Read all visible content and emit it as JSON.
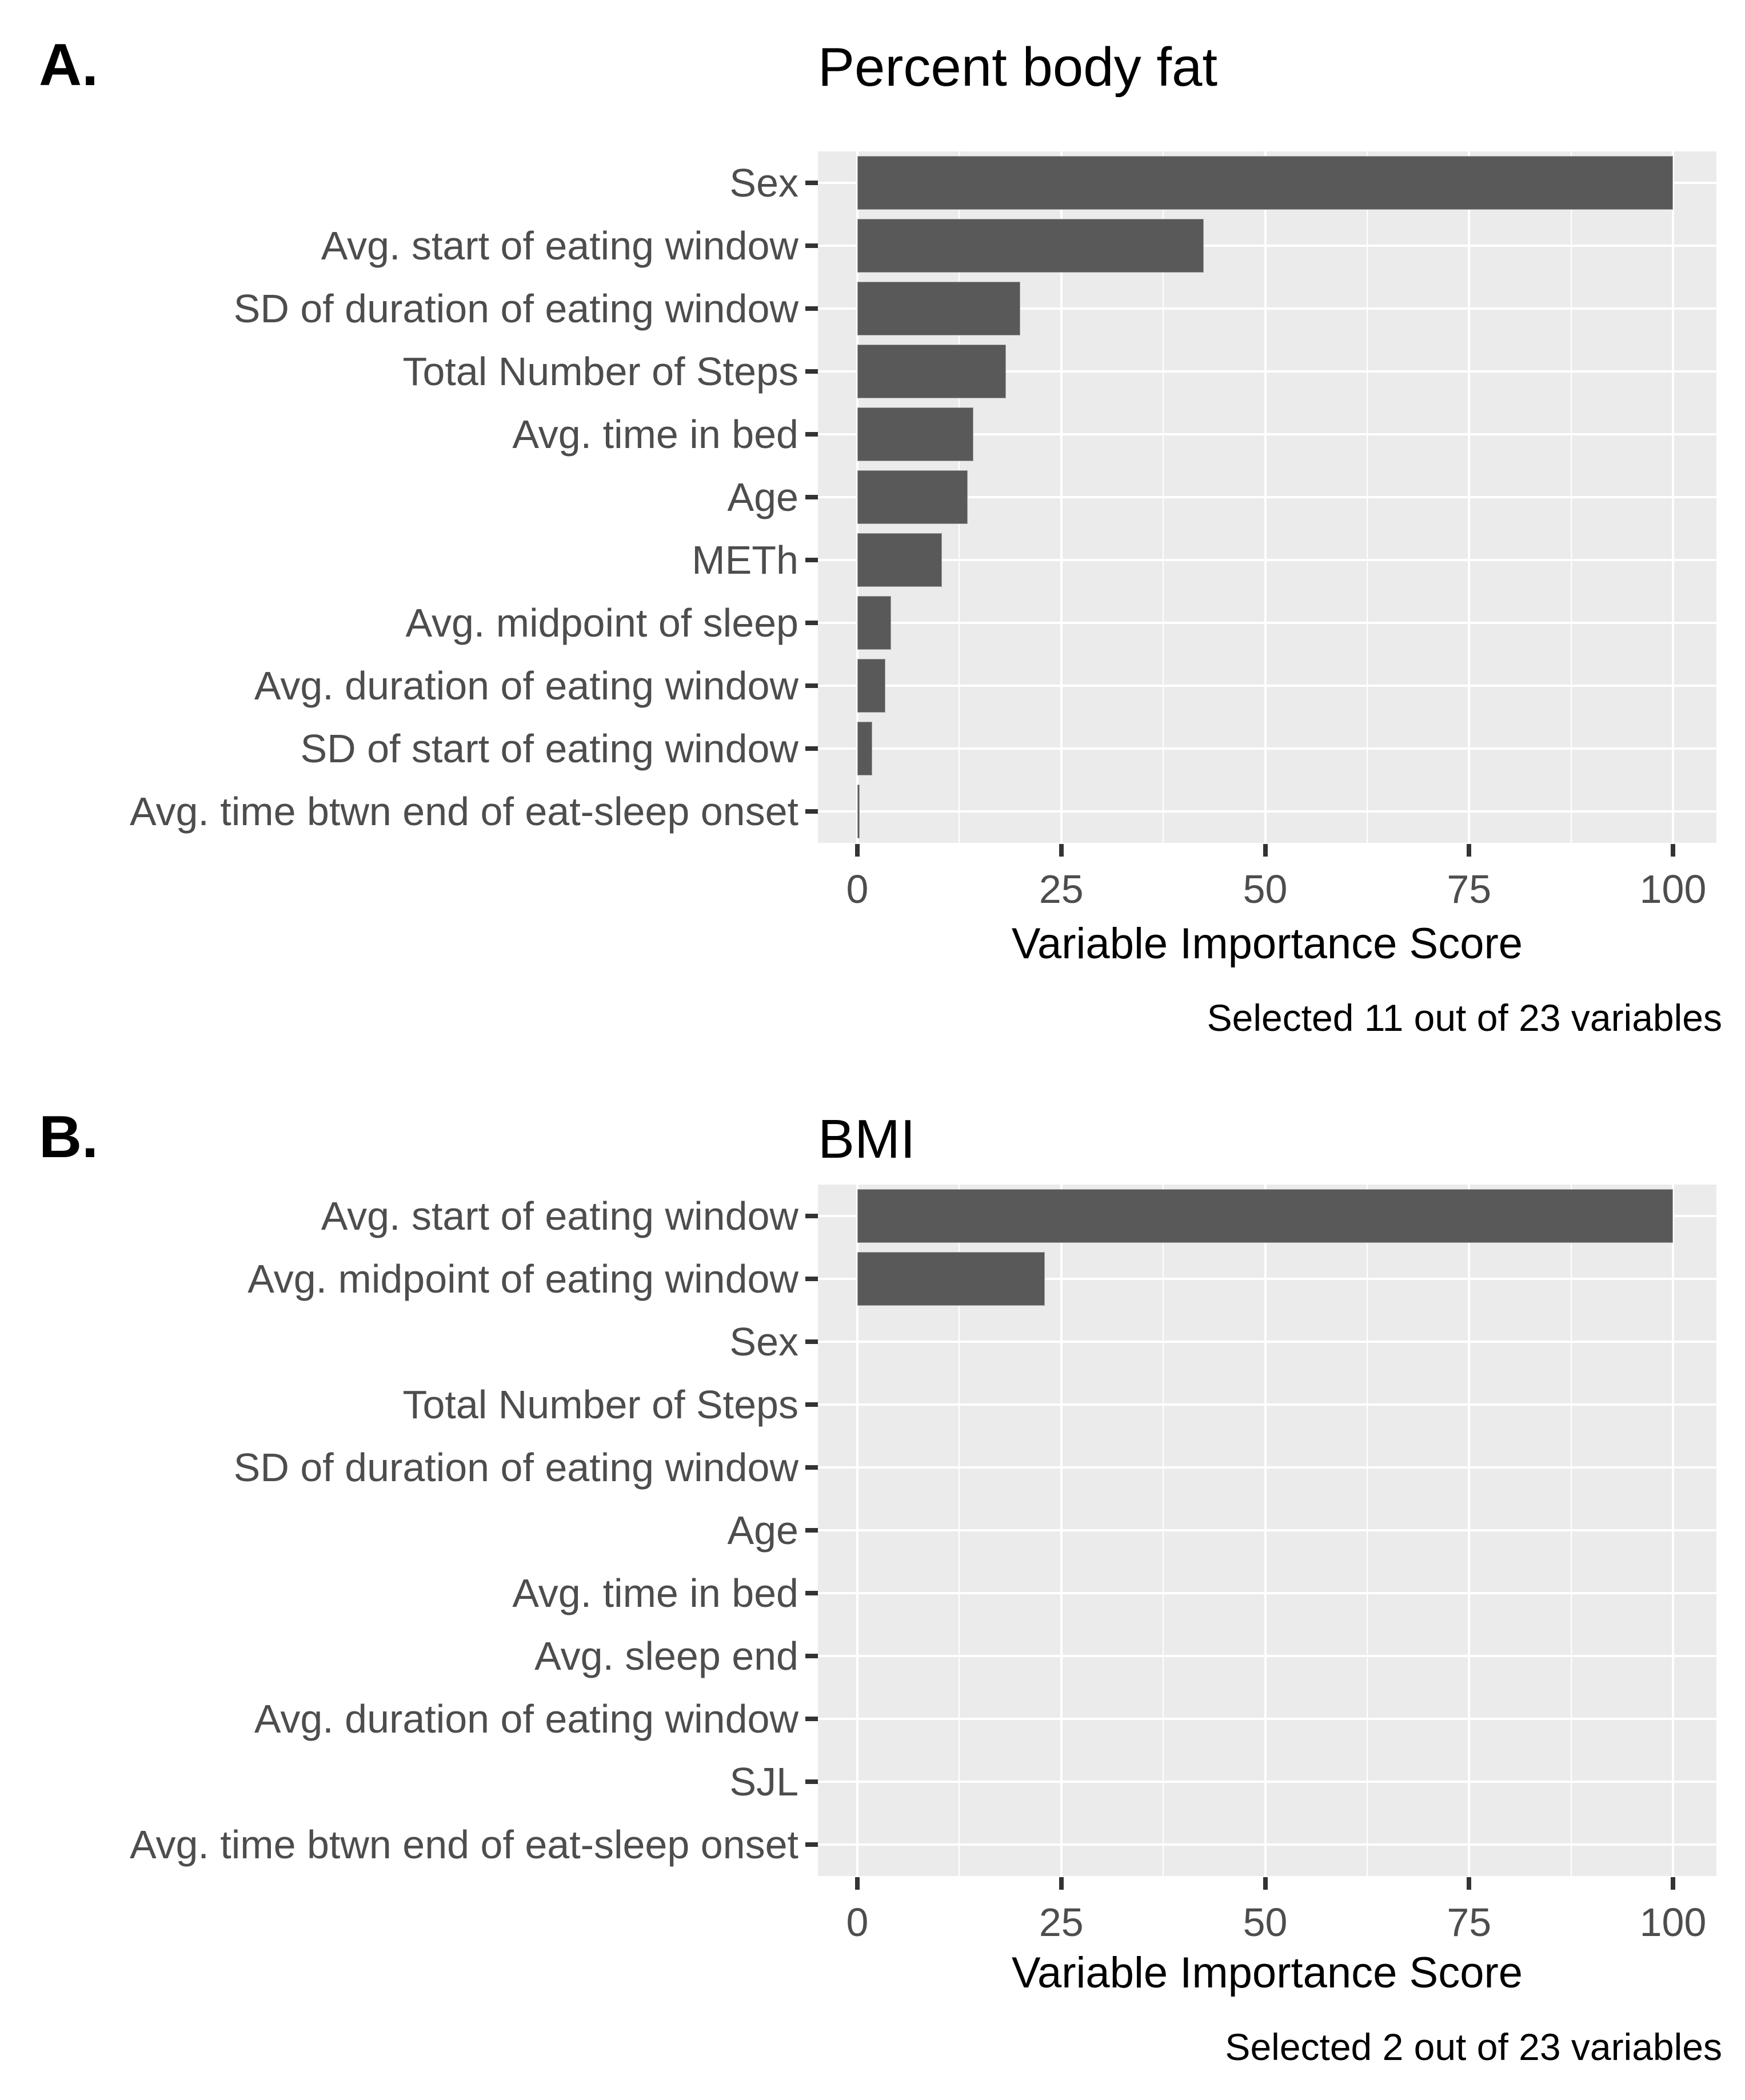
{
  "figure": {
    "background": "#ffffff"
  },
  "colors": {
    "bar_fill": "#595959",
    "bar_border": "#9e9e9e",
    "panel_background": "#ebebeb",
    "gridline": "#ffffff",
    "tick_mark": "#333333",
    "axis_text": "#4d4d4d",
    "title_text": "#000000"
  },
  "chart_data": [
    {
      "type": "bar",
      "orientation": "horizontal",
      "panel_label": "A.",
      "title": "Percent body fat",
      "categories": [
        "Sex",
        "Avg. start of eating window",
        "SD of duration of eating window",
        "Total Number of Steps",
        "Avg. time in bed",
        "Age",
        "METh",
        "Avg. midpoint of sleep",
        "Avg. duration of eating window",
        "SD of start of eating window",
        "Avg. time btwn end of eat-sleep onset"
      ],
      "values": [
        100,
        42.5,
        20,
        18.2,
        14.2,
        13.5,
        10.4,
        4.1,
        3.4,
        1.8,
        0.3
      ],
      "xlabel": "Variable Importance Score",
      "caption": "Selected 11 out of 23 variables",
      "xlim": [
        0,
        100
      ],
      "x_ticks": [
        0,
        25,
        50,
        75,
        100
      ],
      "x_tick_labels": [
        "0",
        "25",
        "50",
        "75",
        "100"
      ],
      "x_minor_gridlines": [
        12.5,
        37.5,
        62.5,
        87.5
      ],
      "grid": "white major and minor gridlines on gray panel",
      "legend_position": "none"
    },
    {
      "type": "bar",
      "orientation": "horizontal",
      "panel_label": "B.",
      "title": "BMI",
      "categories": [
        "Avg. start of eating window",
        "Avg. midpoint of eating window",
        "Sex",
        "Total Number of Steps",
        "SD of duration of eating window",
        "Age",
        "Avg. time in bed",
        "Avg. sleep end",
        "Avg. duration of eating window",
        "SJL",
        "Avg. time btwn end of eat-sleep onset"
      ],
      "values": [
        100,
        23,
        0,
        0,
        0,
        0,
        0,
        0,
        0,
        0,
        0
      ],
      "xlabel": "Variable Importance Score",
      "caption": "Selected 2 out of 23 variables",
      "xlim": [
        0,
        100
      ],
      "x_ticks": [
        0,
        25,
        50,
        75,
        100
      ],
      "x_tick_labels": [
        "0",
        "25",
        "50",
        "75",
        "100"
      ],
      "x_minor_gridlines": [
        12.5,
        37.5,
        62.5,
        87.5
      ],
      "grid": "white major and minor gridlines on gray panel",
      "legend_position": "none"
    }
  ]
}
